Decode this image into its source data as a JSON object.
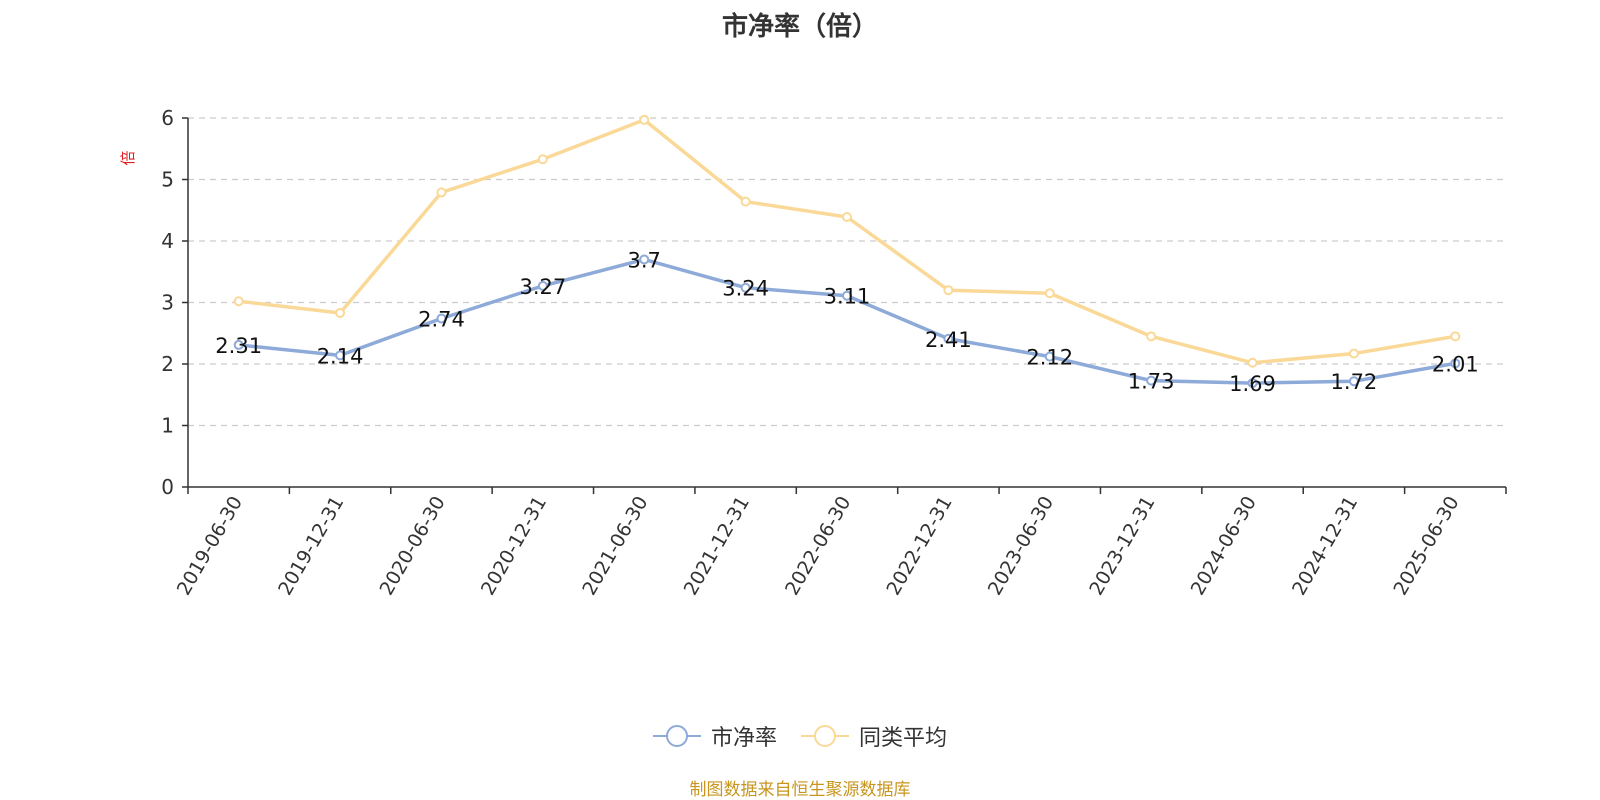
{
  "chart_data": {
    "type": "line",
    "title": "市净率（倍）",
    "ylabel": "倍",
    "ylim": [
      0,
      6
    ],
    "y_ticks": [
      "0",
      "1",
      "2",
      "3",
      "4",
      "5",
      "6"
    ],
    "grid": true,
    "legend_position": "bottom-center",
    "categories": [
      "2019-06-30",
      "2019-12-31",
      "2020-06-30",
      "2020-12-31",
      "2021-06-30",
      "2021-12-31",
      "2022-06-30",
      "2022-12-31",
      "2023-06-30",
      "2023-12-31",
      "2024-06-30",
      "2024-12-31",
      "2025-06-30"
    ],
    "series": [
      {
        "name": "市净率",
        "color": "#8eaad8",
        "values": [
          2.31,
          2.14,
          2.74,
          3.27,
          3.7,
          3.24,
          3.11,
          2.41,
          2.12,
          1.73,
          1.69,
          1.72,
          2.01
        ],
        "labels": [
          "2.31",
          "2.14",
          "2.74",
          "3.27",
          "3.7",
          "3.24",
          "3.11",
          "2.41",
          "2.12",
          "1.73",
          "1.69",
          "1.72",
          "2.01"
        ]
      },
      {
        "name": "同类平均",
        "color": "#fad998",
        "values": [
          3.02,
          2.83,
          4.79,
          5.33,
          5.97,
          4.64,
          4.39,
          3.2,
          3.15,
          2.45,
          2.02,
          2.17,
          2.45
        ]
      }
    ]
  },
  "footer": {
    "source": "制图数据来自恒生聚源数据库"
  },
  "colors": {
    "axis": "#333333",
    "grid": "#cccccc",
    "ylabel": "#e02020",
    "source": "#c8961e"
  }
}
